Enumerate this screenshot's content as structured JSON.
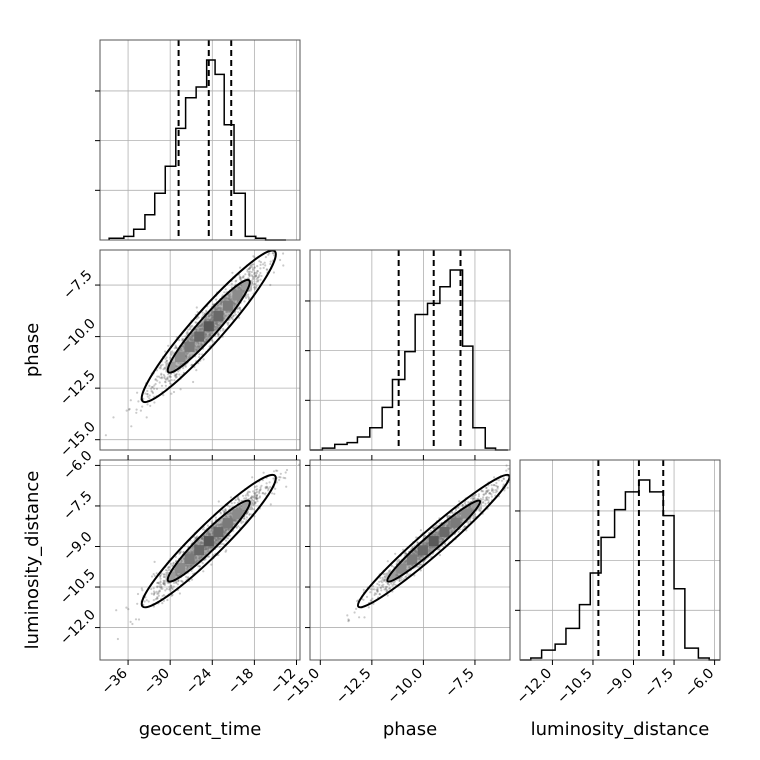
{
  "chart_data": {
    "type": "corner",
    "params": [
      "geocent_time",
      "phase",
      "luminosity_distance"
    ],
    "axis_labels": {
      "x": [
        "geocent_time",
        "phase",
        "luminosity_distance"
      ],
      "y": [
        "",
        "phase",
        "luminosity_distance"
      ]
    },
    "ranges": {
      "geocent_time": [
        -40.0,
        -11.5
      ],
      "phase": [
        -15.5,
        -5.8
      ],
      "luminosity_distance": [
        -13.2,
        -5.8
      ]
    },
    "ticks": {
      "geocent_time": [
        -36,
        -30,
        -24,
        -18,
        -12
      ],
      "phase": [
        -15.0,
        -12.5,
        -10.0,
        -7.5
      ],
      "luminosity_distance": [
        -12.0,
        -10.5,
        -9.0,
        -7.5,
        -6.0
      ]
    },
    "tick_labels": {
      "geocent_time": [
        "−36",
        "−30",
        "−24",
        "−18",
        "−12"
      ],
      "phase": [
        "−15.0",
        "−12.5",
        "−10.0",
        "−7.5"
      ],
      "luminosity_distance": [
        "−12.0",
        "−10.5",
        "−9.0",
        "−7.5",
        "−6.0"
      ]
    },
    "histograms": {
      "geocent_time": {
        "bin_edges": [
          -38.7,
          -36.6,
          -35.2,
          -33.6,
          -32.2,
          -30.7,
          -29.2,
          -27.8,
          -26.3,
          -24.8,
          -23.6,
          -22.3,
          -20.9,
          -19.3,
          -17.8,
          -16.4,
          -14.9,
          -13.5
        ],
        "counts": [
          1,
          2,
          6,
          14,
          26,
          41,
          62,
          79,
          85,
          100,
          92,
          64,
          26,
          2,
          1,
          0,
          0
        ],
        "quantiles": [
          -28.8,
          -24.5,
          -21.3
        ]
      },
      "phase": {
        "bin_edges": [
          -15.5,
          -14.9,
          -14.3,
          -13.7,
          -13.2,
          -12.6,
          -12.0,
          -11.5,
          -10.9,
          -10.4,
          -9.8,
          -9.2,
          -8.7,
          -8.1,
          -7.6,
          -7.0,
          -6.5,
          -5.9
        ],
        "counts": [
          0,
          1,
          3,
          4,
          7,
          12,
          23,
          38,
          53,
          73,
          79,
          88,
          97,
          56,
          12,
          1,
          0
        ],
        "quantiles": [
          -11.2,
          -9.5,
          -8.2
        ]
      },
      "luminosity_distance": {
        "bin_edges": [
          -13.2,
          -12.8,
          -12.4,
          -11.9,
          -11.5,
          -11.0,
          -10.6,
          -10.2,
          -9.7,
          -9.3,
          -8.8,
          -8.4,
          -7.9,
          -7.5,
          -7.1,
          -6.6,
          -6.2,
          -5.8
        ],
        "counts": [
          0,
          1,
          5,
          8,
          16,
          28,
          44,
          62,
          76,
          85,
          91,
          85,
          73,
          36,
          6,
          1,
          0
        ],
        "quantiles": [
          -10.3,
          -8.8,
          -7.9
        ]
      }
    },
    "pairs": [
      {
        "x": "geocent_time",
        "y": "phase",
        "center": [
          -24.5,
          -9.5
        ],
        "sd": [
          3.9,
          1.5
        ],
        "corr": 0.95
      },
      {
        "x": "geocent_time",
        "y": "luminosity_distance",
        "center": [
          -24.5,
          -8.8
        ],
        "sd": [
          3.9,
          1.0
        ],
        "corr": 0.95
      },
      {
        "x": "phase",
        "y": "luminosity_distance",
        "center": [
          -9.5,
          -8.8
        ],
        "sd": [
          1.5,
          1.0
        ],
        "corr": 0.97
      }
    ],
    "grid": true
  }
}
